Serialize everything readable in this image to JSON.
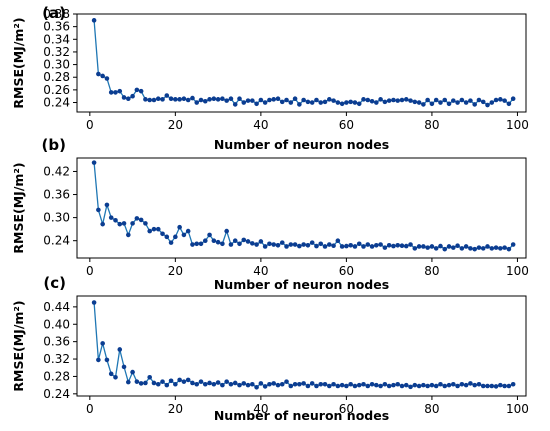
{
  "chart_data": [
    {
      "panel": "(a)",
      "type": "line",
      "xlabel": "Number of neuron nodes",
      "ylabel": "RMSE(MJ/m²)",
      "xlim": [
        -3,
        102
      ],
      "ylim": [
        0.225,
        0.38
      ],
      "xticks": [
        0,
        20,
        40,
        60,
        80,
        100
      ],
      "yticks": [
        0.24,
        0.26,
        0.28,
        0.3,
        0.32,
        0.34,
        0.36,
        0.38
      ],
      "ytick_labels": [
        "0.24",
        "0.26",
        "0.28",
        "0.30",
        "0.32",
        "0.34",
        "0.36",
        "0.38"
      ],
      "color": "#1f77b4",
      "marker_color": "#0b3d91",
      "x": [
        1,
        2,
        3,
        4,
        5,
        6,
        7,
        8,
        9,
        10,
        11,
        12,
        13,
        14,
        15,
        16,
        17,
        18,
        19,
        20,
        21,
        22,
        23,
        24,
        25,
        26,
        27,
        28,
        29,
        30,
        31,
        32,
        33,
        34,
        35,
        36,
        37,
        38,
        39,
        40,
        41,
        42,
        43,
        44,
        45,
        46,
        47,
        48,
        49,
        50,
        51,
        52,
        53,
        54,
        55,
        56,
        57,
        58,
        59,
        60,
        61,
        62,
        63,
        64,
        65,
        66,
        67,
        68,
        69,
        70,
        71,
        72,
        73,
        74,
        75,
        76,
        77,
        78,
        79,
        80,
        81,
        82,
        83,
        84,
        85,
        86,
        87,
        88,
        89,
        90,
        91,
        92,
        93,
        94,
        95,
        96,
        97,
        98,
        99
      ],
      "values": [
        0.37,
        0.285,
        0.282,
        0.278,
        0.256,
        0.256,
        0.258,
        0.248,
        0.246,
        0.25,
        0.26,
        0.258,
        0.245,
        0.244,
        0.244,
        0.246,
        0.245,
        0.251,
        0.246,
        0.245,
        0.245,
        0.246,
        0.244,
        0.247,
        0.24,
        0.244,
        0.242,
        0.245,
        0.246,
        0.245,
        0.246,
        0.243,
        0.246,
        0.237,
        0.246,
        0.24,
        0.243,
        0.243,
        0.238,
        0.244,
        0.24,
        0.244,
        0.245,
        0.246,
        0.241,
        0.244,
        0.24,
        0.246,
        0.237,
        0.244,
        0.241,
        0.24,
        0.244,
        0.24,
        0.241,
        0.245,
        0.243,
        0.24,
        0.238,
        0.24,
        0.241,
        0.24,
        0.238,
        0.245,
        0.244,
        0.242,
        0.24,
        0.245,
        0.241,
        0.243,
        0.244,
        0.243,
        0.244,
        0.245,
        0.243,
        0.241,
        0.24,
        0.237,
        0.244,
        0.238,
        0.244,
        0.24,
        0.244,
        0.238,
        0.243,
        0.24,
        0.244,
        0.24,
        0.243,
        0.237,
        0.244,
        0.241,
        0.236,
        0.24,
        0.244,
        0.245,
        0.243,
        0.238,
        0.246
      ]
    },
    {
      "panel": "(b)",
      "type": "line",
      "xlabel": "Number of neuron nodes",
      "ylabel": "RMSE(MJ/m²)",
      "xlim": [
        -3,
        102
      ],
      "ylim": [
        0.195,
        0.455
      ],
      "xticks": [
        0,
        20,
        40,
        60,
        80,
        100
      ],
      "yticks": [
        0.24,
        0.3,
        0.36,
        0.42
      ],
      "ytick_labels": [
        "0.24",
        "0.30",
        "0.36",
        "0.42"
      ],
      "color": "#1f77b4",
      "marker_color": "#0b3d91",
      "x": [
        1,
        2,
        3,
        4,
        5,
        6,
        7,
        8,
        9,
        10,
        11,
        12,
        13,
        14,
        15,
        16,
        17,
        18,
        19,
        20,
        21,
        22,
        23,
        24,
        25,
        26,
        27,
        28,
        29,
        30,
        31,
        32,
        33,
        34,
        35,
        36,
        37,
        38,
        39,
        40,
        41,
        42,
        43,
        44,
        45,
        46,
        47,
        48,
        49,
        50,
        51,
        52,
        53,
        54,
        55,
        56,
        57,
        58,
        59,
        60,
        61,
        62,
        63,
        64,
        65,
        66,
        67,
        68,
        69,
        70,
        71,
        72,
        73,
        74,
        75,
        76,
        77,
        78,
        79,
        80,
        81,
        82,
        83,
        84,
        85,
        86,
        87,
        88,
        89,
        90,
        91,
        92,
        93,
        94,
        95,
        96,
        97,
        98,
        99
      ],
      "values": [
        0.443,
        0.32,
        0.283,
        0.333,
        0.3,
        0.293,
        0.283,
        0.285,
        0.255,
        0.285,
        0.298,
        0.294,
        0.285,
        0.265,
        0.27,
        0.27,
        0.258,
        0.25,
        0.235,
        0.25,
        0.275,
        0.255,
        0.265,
        0.23,
        0.232,
        0.232,
        0.24,
        0.255,
        0.24,
        0.236,
        0.232,
        0.265,
        0.23,
        0.24,
        0.232,
        0.242,
        0.238,
        0.233,
        0.23,
        0.238,
        0.225,
        0.232,
        0.23,
        0.228,
        0.235,
        0.225,
        0.23,
        0.23,
        0.226,
        0.23,
        0.228,
        0.235,
        0.226,
        0.232,
        0.225,
        0.23,
        0.227,
        0.24,
        0.225,
        0.226,
        0.228,
        0.225,
        0.232,
        0.225,
        0.23,
        0.225,
        0.228,
        0.23,
        0.222,
        0.228,
        0.226,
        0.228,
        0.227,
        0.226,
        0.23,
        0.22,
        0.225,
        0.225,
        0.222,
        0.225,
        0.22,
        0.226,
        0.218,
        0.225,
        0.222,
        0.227,
        0.22,
        0.225,
        0.22,
        0.218,
        0.222,
        0.22,
        0.225,
        0.22,
        0.222,
        0.22,
        0.222,
        0.218,
        0.23
      ]
    },
    {
      "panel": "(c)",
      "type": "line",
      "xlabel": "Number of neuron nodes",
      "ylabel": "RMSE(MJ/m²)",
      "xlim": [
        -3,
        102
      ],
      "ylim": [
        0.235,
        0.465
      ],
      "xticks": [
        0,
        20,
        40,
        60,
        80,
        100
      ],
      "yticks": [
        0.24,
        0.28,
        0.32,
        0.36,
        0.4,
        0.44
      ],
      "ytick_labels": [
        "0.24",
        "0.28",
        "0.32",
        "0.36",
        "0.40",
        "0.44"
      ],
      "color": "#1f77b4",
      "marker_color": "#0b3d91",
      "x": [
        1,
        2,
        3,
        4,
        5,
        6,
        7,
        8,
        9,
        10,
        11,
        12,
        13,
        14,
        15,
        16,
        17,
        18,
        19,
        20,
        21,
        22,
        23,
        24,
        25,
        26,
        27,
        28,
        29,
        30,
        31,
        32,
        33,
        34,
        35,
        36,
        37,
        38,
        39,
        40,
        41,
        42,
        43,
        44,
        45,
        46,
        47,
        48,
        49,
        50,
        51,
        52,
        53,
        54,
        55,
        56,
        57,
        58,
        59,
        60,
        61,
        62,
        63,
        64,
        65,
        66,
        67,
        68,
        69,
        70,
        71,
        72,
        73,
        74,
        75,
        76,
        77,
        78,
        79,
        80,
        81,
        82,
        83,
        84,
        85,
        86,
        87,
        88,
        89,
        90,
        91,
        92,
        93,
        94,
        95,
        96,
        97,
        98,
        99
      ],
      "values": [
        0.45,
        0.318,
        0.356,
        0.318,
        0.286,
        0.278,
        0.342,
        0.302,
        0.267,
        0.29,
        0.268,
        0.264,
        0.265,
        0.278,
        0.265,
        0.262,
        0.268,
        0.26,
        0.27,
        0.262,
        0.272,
        0.268,
        0.272,
        0.265,
        0.262,
        0.268,
        0.262,
        0.265,
        0.262,
        0.266,
        0.26,
        0.268,
        0.262,
        0.265,
        0.26,
        0.264,
        0.26,
        0.262,
        0.255,
        0.264,
        0.257,
        0.262,
        0.264,
        0.26,
        0.262,
        0.268,
        0.258,
        0.262,
        0.262,
        0.264,
        0.258,
        0.264,
        0.258,
        0.262,
        0.262,
        0.258,
        0.262,
        0.258,
        0.26,
        0.258,
        0.262,
        0.258,
        0.26,
        0.262,
        0.258,
        0.262,
        0.26,
        0.258,
        0.262,
        0.258,
        0.26,
        0.262,
        0.258,
        0.26,
        0.256,
        0.26,
        0.258,
        0.26,
        0.258,
        0.26,
        0.258,
        0.262,
        0.258,
        0.26,
        0.262,
        0.258,
        0.262,
        0.26,
        0.264,
        0.26,
        0.262,
        0.258,
        0.258,
        0.258,
        0.257,
        0.26,
        0.258,
        0.258,
        0.262
      ]
    }
  ]
}
